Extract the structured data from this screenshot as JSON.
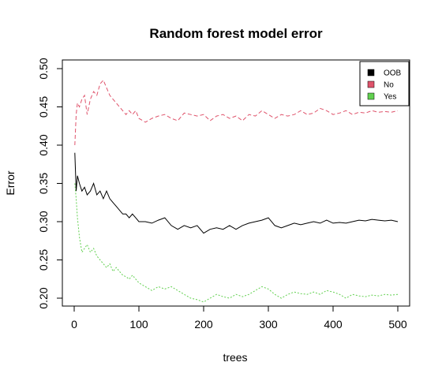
{
  "chart_data": {
    "type": "line",
    "title": "Random forest model error",
    "xlabel": "trees",
    "ylabel": "Error",
    "xlim": [
      0,
      500
    ],
    "ylim": [
      0.18,
      0.5
    ],
    "x_ticks": [
      0,
      100,
      200,
      300,
      400,
      500
    ],
    "y_ticks": [
      "0.20",
      "0.25",
      "0.30",
      "0.35",
      "0.40",
      "0.45",
      "0.50"
    ],
    "legend_position": "top-right",
    "grid": false,
    "series": [
      {
        "name": "OOB",
        "color": "#000000",
        "dash": "solid",
        "x": [
          1,
          3,
          5,
          8,
          12,
          16,
          20,
          25,
          30,
          35,
          40,
          45,
          50,
          55,
          60,
          65,
          70,
          75,
          80,
          85,
          90,
          95,
          100,
          110,
          120,
          130,
          140,
          150,
          160,
          170,
          180,
          190,
          200,
          210,
          220,
          230,
          240,
          250,
          260,
          270,
          280,
          290,
          300,
          310,
          320,
          330,
          340,
          350,
          360,
          370,
          380,
          390,
          400,
          410,
          420,
          430,
          440,
          450,
          460,
          470,
          480,
          490,
          500
        ],
        "values": [
          0.39,
          0.34,
          0.36,
          0.35,
          0.34,
          0.345,
          0.335,
          0.34,
          0.35,
          0.335,
          0.34,
          0.33,
          0.34,
          0.33,
          0.325,
          0.32,
          0.315,
          0.31,
          0.31,
          0.305,
          0.31,
          0.305,
          0.3,
          0.3,
          0.298,
          0.302,
          0.305,
          0.295,
          0.29,
          0.295,
          0.292,
          0.295,
          0.285,
          0.29,
          0.292,
          0.29,
          0.295,
          0.29,
          0.295,
          0.298,
          0.3,
          0.302,
          0.305,
          0.295,
          0.292,
          0.295,
          0.298,
          0.296,
          0.298,
          0.3,
          0.298,
          0.302,
          0.298,
          0.299,
          0.298,
          0.3,
          0.302,
          0.301,
          0.303,
          0.302,
          0.301,
          0.302,
          0.3
        ]
      },
      {
        "name": "No",
        "color": "#DF536B",
        "dash": "5,3",
        "x": [
          1,
          3,
          5,
          8,
          12,
          16,
          20,
          25,
          30,
          35,
          40,
          45,
          50,
          55,
          60,
          65,
          70,
          75,
          80,
          85,
          90,
          95,
          100,
          110,
          120,
          130,
          140,
          150,
          160,
          170,
          180,
          190,
          200,
          210,
          220,
          230,
          240,
          250,
          260,
          270,
          280,
          290,
          300,
          310,
          320,
          330,
          340,
          350,
          360,
          370,
          380,
          390,
          400,
          410,
          420,
          430,
          440,
          450,
          460,
          470,
          480,
          490,
          500
        ],
        "values": [
          0.4,
          0.44,
          0.455,
          0.45,
          0.46,
          0.465,
          0.44,
          0.46,
          0.47,
          0.465,
          0.48,
          0.485,
          0.475,
          0.465,
          0.46,
          0.455,
          0.45,
          0.445,
          0.44,
          0.445,
          0.44,
          0.445,
          0.435,
          0.43,
          0.435,
          0.438,
          0.44,
          0.435,
          0.432,
          0.442,
          0.44,
          0.438,
          0.44,
          0.432,
          0.438,
          0.44,
          0.435,
          0.438,
          0.432,
          0.44,
          0.438,
          0.445,
          0.44,
          0.435,
          0.44,
          0.438,
          0.44,
          0.445,
          0.44,
          0.442,
          0.448,
          0.445,
          0.44,
          0.442,
          0.445,
          0.44,
          0.443,
          0.442,
          0.445,
          0.443,
          0.444,
          0.443,
          0.445
        ]
      },
      {
        "name": "Yes",
        "color": "#61D04F",
        "dash": "2,2",
        "x": [
          1,
          3,
          5,
          8,
          12,
          16,
          20,
          25,
          30,
          35,
          40,
          45,
          50,
          55,
          60,
          65,
          70,
          75,
          80,
          85,
          90,
          95,
          100,
          110,
          120,
          130,
          140,
          150,
          160,
          170,
          180,
          190,
          200,
          210,
          220,
          230,
          240,
          250,
          260,
          270,
          280,
          290,
          300,
          310,
          320,
          330,
          340,
          350,
          360,
          370,
          380,
          390,
          400,
          410,
          420,
          430,
          440,
          450,
          460,
          470,
          480,
          490,
          500
        ],
        "values": [
          0.35,
          0.33,
          0.305,
          0.28,
          0.26,
          0.265,
          0.27,
          0.26,
          0.265,
          0.255,
          0.25,
          0.245,
          0.24,
          0.245,
          0.235,
          0.24,
          0.235,
          0.23,
          0.228,
          0.225,
          0.23,
          0.225,
          0.22,
          0.215,
          0.21,
          0.215,
          0.212,
          0.215,
          0.21,
          0.205,
          0.2,
          0.198,
          0.195,
          0.2,
          0.205,
          0.202,
          0.2,
          0.205,
          0.202,
          0.205,
          0.21,
          0.215,
          0.212,
          0.205,
          0.2,
          0.205,
          0.208,
          0.206,
          0.205,
          0.208,
          0.205,
          0.21,
          0.208,
          0.205,
          0.2,
          0.205,
          0.203,
          0.202,
          0.204,
          0.203,
          0.205,
          0.204,
          0.205
        ]
      }
    ]
  }
}
